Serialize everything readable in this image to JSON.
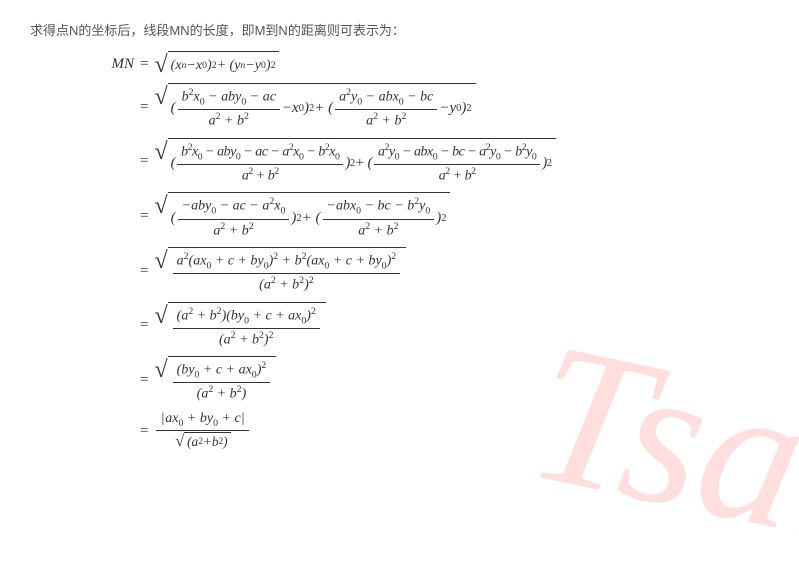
{
  "colors": {
    "text": "#333333",
    "muted": "#555555",
    "background": "#ffffff",
    "watermark": "#ff4d4d"
  },
  "typography": {
    "body_font": "Microsoft YaHei / PingFang SC",
    "math_font": "Times New Roman (italic)",
    "body_size_pt": 10,
    "math_size_pt": 11
  },
  "intro_text": "求得点N的坐标后，线段MN的长度，即M到N的距离则可表示为：",
  "watermark_text": "Tsai",
  "derivation": {
    "lhs": "MN",
    "steps": [
      {
        "expr": "sqrt( (x_n − x_0)^2 + (y_n − y_0)^2 )"
      },
      {
        "expr": "sqrt( ( (b^2 x_0 − a b y_0 − a c)/(a^2 + b^2) − x_0 )^2 + ( (a^2 y_0 − a b x_0 − b c)/(a^2 + b^2) − y_0 )^2 )"
      },
      {
        "expr": "sqrt( ( (b^2 x_0 − a b y_0 − a c − a^2 x_0 − b^2 x_0)/(a^2 + b^2) )^2 + ( (a^2 y_0 − a b x_0 − b c − a^2 y_0 − b^2 y_0)/(a^2 + b^2) )^2 )"
      },
      {
        "expr": "sqrt( ( (−a b y_0 − a c − a^2 x_0)/(a^2 + b^2) )^2 + ( (−a b x_0 − b c − b^2 y_0)/(a^2 + b^2) )^2 )"
      },
      {
        "expr": "sqrt( ( a^2 (a x_0 + c + b y_0)^2 + b^2 (a x_0 + c + b y_0)^2 ) / (a^2 + b^2)^2 )"
      },
      {
        "expr": "sqrt( ( (a^2 + b^2)(b y_0 + c + a x_0)^2 ) / (a^2 + b^2)^2 )"
      },
      {
        "expr": "sqrt( (b y_0 + c + a x_0)^2 / (a^2 + b^2) )"
      },
      {
        "expr": "|a x_0 + b y_0 + c| / sqrt(a^2 + b^2)"
      }
    ]
  }
}
